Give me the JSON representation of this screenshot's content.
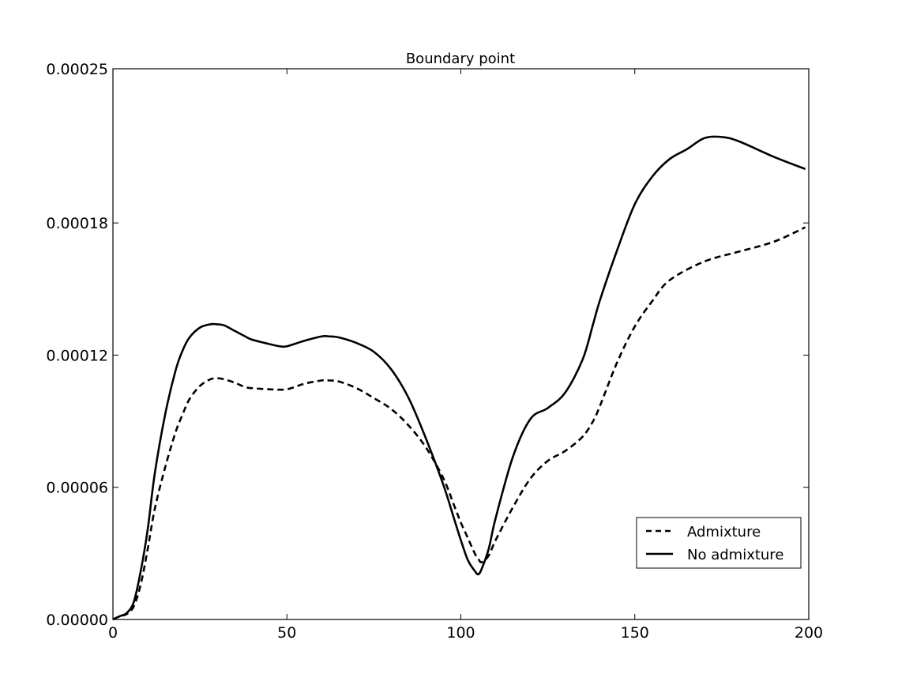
{
  "chart_data": {
    "type": "line",
    "title": "Boundary point",
    "xlabel": "",
    "ylabel": "",
    "xlim": [
      0,
      200
    ],
    "ylim": [
      0,
      0.00025
    ],
    "x_ticks": [
      0,
      50,
      100,
      150,
      200
    ],
    "x_tick_labels": [
      "0",
      "50",
      "100",
      "150",
      "200"
    ],
    "y_ticks": [
      0,
      6e-05,
      0.00012,
      0.00018,
      0.00025
    ],
    "y_tick_labels": [
      "0.00000",
      "0.00006",
      "0.00012",
      "0.00018",
      "0.00025"
    ],
    "grid": false,
    "legend_position": "lower-right",
    "series": [
      {
        "name": "Admixture",
        "style": "dashed",
        "color": "#000000",
        "x": [
          0,
          2,
          4,
          6,
          8,
          10,
          12,
          15,
          18,
          20,
          22,
          25,
          28,
          30,
          32,
          35,
          38,
          40,
          45,
          50,
          55,
          60,
          62,
          65,
          70,
          75,
          80,
          85,
          90,
          95,
          98,
          100,
          102,
          104,
          105,
          106,
          108,
          110,
          115,
          120,
          125,
          130,
          135,
          138,
          140,
          145,
          150,
          155,
          160,
          170,
          180,
          190,
          199
        ],
        "y": [
          0,
          1.5e-06,
          2.5e-06,
          6e-06,
          1.6e-05,
          3.2e-05,
          5e-05,
          6.9e-05,
          8.5e-05,
          9.3e-05,
          0.0001,
          0.000106,
          0.000109,
          0.0001095,
          0.000109,
          0.0001075,
          0.0001055,
          0.000105,
          0.0001045,
          0.0001045,
          0.000107,
          0.0001085,
          0.0001085,
          0.000108,
          0.000105,
          0.0001005,
          9.55e-05,
          8.8e-05,
          7.8e-05,
          6.4e-05,
          5.2e-05,
          4.4e-05,
          3.7e-05,
          3e-05,
          2.75e-05,
          2.6e-05,
          2.9e-05,
          3.6e-05,
          5.1e-05,
          6.4e-05,
          7.2e-05,
          7.65e-05,
          8.3e-05,
          9e-05,
          9.7e-05,
          0.000117,
          0.000133,
          0.0001445,
          0.000154,
          0.0001625,
          0.000167,
          0.0001715,
          0.000178
        ]
      },
      {
        "name": "No admixture",
        "style": "solid",
        "color": "#000000",
        "x": [
          0,
          2,
          4,
          6,
          8,
          10,
          12,
          15,
          18,
          20,
          22,
          25,
          28,
          30,
          32,
          35,
          38,
          40,
          45,
          48,
          50,
          55,
          60,
          62,
          65,
          70,
          75,
          80,
          85,
          90,
          95,
          98,
          100,
          102,
          104,
          105,
          106,
          108,
          110,
          115,
          120,
          125,
          130,
          135,
          138,
          140,
          145,
          150,
          155,
          160,
          165,
          170,
          175,
          180,
          190,
          199
        ],
        "y": [
          0,
          1.5e-06,
          3e-06,
          8e-06,
          2.2e-05,
          4.1e-05,
          6.6e-05,
          9.3e-05,
          0.000113,
          0.000122,
          0.000128,
          0.0001325,
          0.000134,
          0.000134,
          0.0001335,
          0.000131,
          0.0001285,
          0.000127,
          0.000125,
          0.000124,
          0.000124,
          0.0001265,
          0.0001285,
          0.0001285,
          0.000128,
          0.0001255,
          0.0001215,
          0.0001135,
          0.0001005,
          8.2e-05,
          6.1e-05,
          4.6e-05,
          3.6e-05,
          2.7e-05,
          2.2e-05,
          2.05e-05,
          2.3e-05,
          3.2e-05,
          4.6e-05,
          7.4e-05,
          9.1e-05,
          9.6e-05,
          0.000103,
          0.000118,
          0.000134,
          0.000145,
          0.000168,
          0.0001885,
          0.000201,
          0.000209,
          0.0002135,
          0.0002185,
          0.000219,
          0.000217,
          0.00021,
          0.0002045
        ]
      }
    ]
  }
}
